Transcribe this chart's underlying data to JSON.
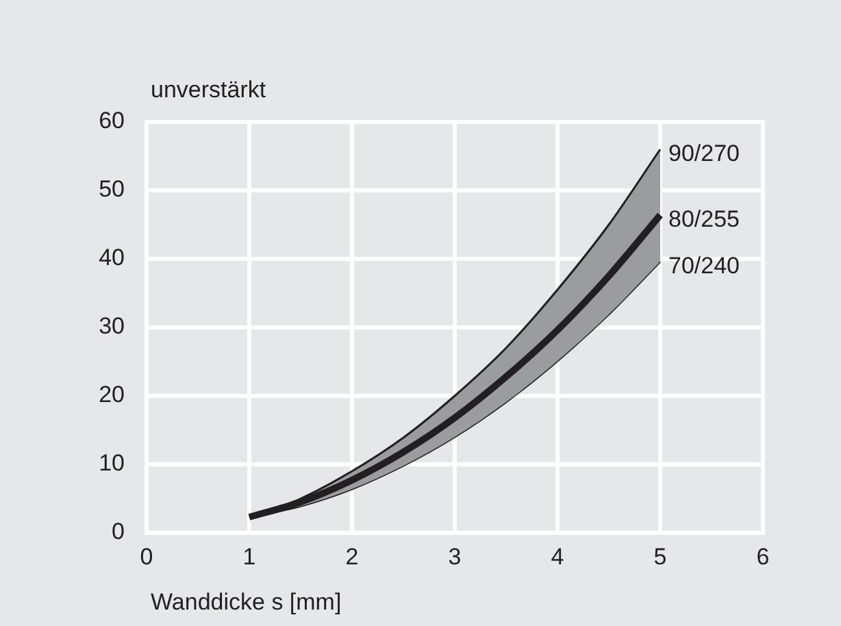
{
  "chart_data": {
    "type": "line",
    "ylabel": "unverstärkt",
    "xlabel": "Wanddicke s [mm]",
    "x": [
      1,
      1.5,
      2,
      2.5,
      3,
      3.5,
      4,
      4.5,
      5
    ],
    "series": [
      {
        "name": "90/270",
        "color": "#231f20",
        "values": [
          2.3,
          5,
          9,
          13.9,
          20,
          27,
          35.5,
          45,
          56
        ]
      },
      {
        "name": "80/255",
        "color": "#231f20",
        "values": [
          2.3,
          4.5,
          7.7,
          11.8,
          16.8,
          22.8,
          29.6,
          37.5,
          46.4
        ]
      },
      {
        "name": "70/240",
        "color": "#231f20",
        "values": [
          2.3,
          3.9,
          6.4,
          9.8,
          14,
          19.1,
          25.1,
          31.9,
          39.6
        ]
      }
    ],
    "xlim": [
      0,
      6
    ],
    "xticks": [
      0,
      1,
      2,
      3,
      4,
      5,
      6
    ],
    "ylim": [
      0,
      60
    ],
    "yticks": [
      0,
      10,
      20,
      30,
      40,
      50,
      60
    ],
    "grid": true,
    "legend": false,
    "marker": "none",
    "line_style": "solid"
  }
}
